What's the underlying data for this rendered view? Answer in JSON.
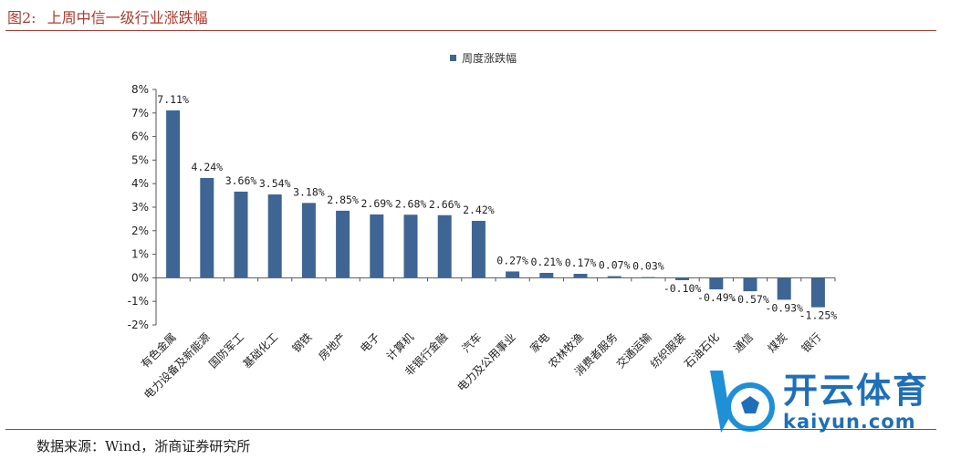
{
  "figure": {
    "label": "图2:",
    "title": "上周中信一级行业涨跌幅",
    "source": "数据来源：Wind，浙商证券研究所"
  },
  "watermark": {
    "brand_cn": "开云体育",
    "brand_en": "kaiyun.com",
    "logo_icon": "soccer-ball-k-logo-icon"
  },
  "chart_data": {
    "type": "bar",
    "legend": {
      "entries": [
        "周度涨跌幅"
      ],
      "position": "top-center"
    },
    "ylim": [
      -2,
      8
    ],
    "yticks": [
      8,
      7,
      6,
      5,
      4,
      3,
      2,
      1,
      0,
      -1,
      -2
    ],
    "ytick_labels": [
      "8%",
      "7%",
      "6%",
      "5%",
      "4%",
      "3%",
      "2%",
      "1%",
      "0%",
      "-1%",
      "-2%"
    ],
    "grid": false,
    "color": "#3e6593",
    "categories": [
      "有色金属",
      "电力设备及新能源",
      "国防军工",
      "基础化工",
      "钢铁",
      "房地产",
      "电子",
      "计算机",
      "非银行金融",
      "汽车",
      "电力及公用事业",
      "家电",
      "农林牧渔",
      "消费者服务",
      "交通运输",
      "纺织服装",
      "石油石化",
      "通信",
      "煤炭",
      "银行"
    ],
    "series": [
      {
        "name": "周度涨跌幅",
        "values": [
          7.11,
          4.24,
          3.66,
          3.54,
          3.18,
          2.85,
          2.69,
          2.68,
          2.66,
          2.42,
          0.27,
          0.21,
          0.17,
          0.07,
          0.03,
          -0.1,
          -0.49,
          -0.57,
          -0.93,
          -1.25
        ],
        "labels": [
          "7.11%",
          "4.24%",
          "3.66%",
          "3.54%",
          "3.18%",
          "2.85%",
          "2.69%",
          "2.68%",
          "2.66%",
          "2.42%",
          "0.27%",
          "0.21%",
          "0.17%",
          "0.07%",
          "0.03%",
          "-0.10%",
          "-0.49%",
          "-0.57%",
          "-0.93%",
          "-1.25%"
        ]
      }
    ]
  }
}
